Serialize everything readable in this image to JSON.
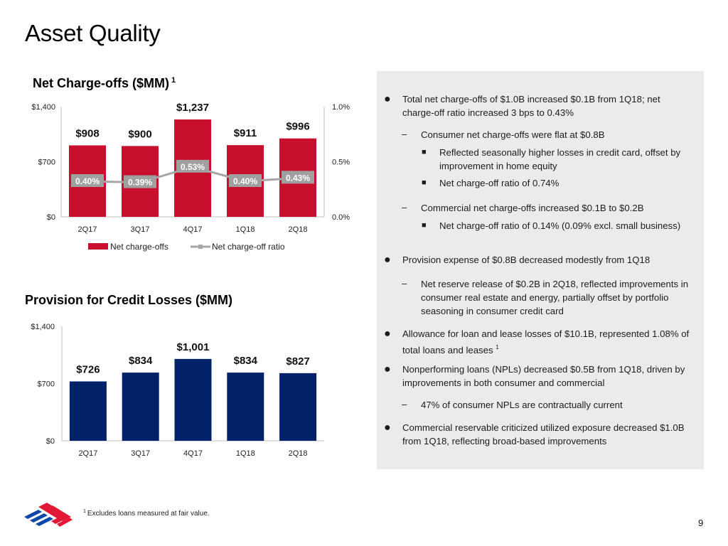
{
  "page": {
    "title": "Asset Quality",
    "page_number": "9",
    "footnote_marker": "1",
    "footnote": "Excludes loans measured at fair value.",
    "logo": "bank-flag-logo-icon"
  },
  "colors": {
    "nco_bar": "#c8102e",
    "ratio_line": "#a6a6a6",
    "ratio_label_bg": "#a0a0a0",
    "provision_bar": "#012169",
    "panel_bg": "#ebebeb",
    "logo_red": "#e31837",
    "logo_blue": "#0a47a8"
  },
  "chart_data": [
    {
      "id": "net-charge-offs",
      "type": "bar",
      "title": "Net Charge-offs ($MM)",
      "title_footnote": "1",
      "categories": [
        "2Q17",
        "3Q17",
        "4Q17",
        "1Q18",
        "2Q18"
      ],
      "series": [
        {
          "name": "Net charge-offs",
          "type": "bar",
          "axis": "left",
          "values": [
            908,
            900,
            1237,
            911,
            996
          ],
          "labels": [
            "$908",
            "$900",
            "$1,237",
            "$911",
            "$996"
          ]
        },
        {
          "name": "Net charge-off ratio",
          "type": "line",
          "axis": "right",
          "values": [
            0.4,
            0.39,
            0.53,
            0.4,
            0.43
          ],
          "labels": [
            "0.40%",
            "0.39%",
            "0.53%",
            "0.40%",
            "0.43%"
          ]
        }
      ],
      "y_left": {
        "min": 0,
        "max": 1400,
        "ticks": [
          0,
          700,
          1400
        ],
        "tick_labels": [
          "$0",
          "$700",
          "$1,400"
        ]
      },
      "y_right": {
        "min": 0,
        "max": 1.0,
        "ticks": [
          0,
          0.5,
          1.0
        ],
        "tick_labels": [
          "0.0%",
          "0.5%",
          "1.0%"
        ]
      },
      "xlabel": "",
      "ylabel": "",
      "grid": false,
      "legend": {
        "position": "bottom",
        "entries": [
          "Net charge-offs",
          "Net charge-off ratio"
        ]
      }
    },
    {
      "id": "provision-for-credit-losses",
      "type": "bar",
      "title": "Provision for Credit Losses ($MM)",
      "categories": [
        "2Q17",
        "3Q17",
        "4Q17",
        "1Q18",
        "2Q18"
      ],
      "series": [
        {
          "name": "Provision for credit losses",
          "type": "bar",
          "values": [
            726,
            834,
            1001,
            834,
            827
          ],
          "labels": [
            "$726",
            "$834",
            "$1,001",
            "$834",
            "$827"
          ]
        }
      ],
      "y_left": {
        "min": 0,
        "max": 1400,
        "ticks": [
          0,
          700,
          1400
        ],
        "tick_labels": [
          "$0",
          "$700",
          "$1,400"
        ]
      },
      "xlabel": "",
      "ylabel": "",
      "grid": false,
      "legend": null
    }
  ],
  "panel": {
    "bullets": [
      {
        "level": 1,
        "text": "Total net charge-offs of $1.0B increased $0.1B from 1Q18; net charge-off ratio increased 3 bps to 0.43%"
      },
      {
        "level": 2,
        "text": "Consumer net charge-offs were flat at $0.8B"
      },
      {
        "level": 3,
        "text": "Reflected seasonally higher losses in credit card, offset by improvement in home equity"
      },
      {
        "level": 3,
        "text": "Net charge-off ratio of 0.74%"
      },
      {
        "level": 2,
        "text": "Commercial net charge-offs increased $0.1B to $0.2B"
      },
      {
        "level": 3,
        "text": "Net charge-off ratio of 0.14% (0.09% excl. small business)"
      },
      {
        "level": 1,
        "text": "Provision expense of $0.8B decreased modestly from 1Q18"
      },
      {
        "level": 2,
        "text": "Net reserve release of $0.2B in 2Q18, reflected improvements in consumer real estate and energy, partially offset by portfolio seasoning in consumer credit card"
      },
      {
        "level": 1,
        "text": "Allowance for loan and lease losses of $10.1B, represented 1.08% of total loans and leases",
        "footnote": "1"
      },
      {
        "level": 1,
        "text": "Nonperforming loans (NPLs) decreased $0.5B from 1Q18, driven by improvements in both consumer and commercial"
      },
      {
        "level": 2,
        "text": "47% of consumer NPLs are contractually current"
      },
      {
        "level": 1,
        "text": "Commercial reservable criticized utilized exposure decreased $1.0B from 1Q18, reflecting broad-based improvements"
      }
    ],
    "markers": {
      "1": "●",
      "2": "–",
      "3": "■"
    }
  }
}
